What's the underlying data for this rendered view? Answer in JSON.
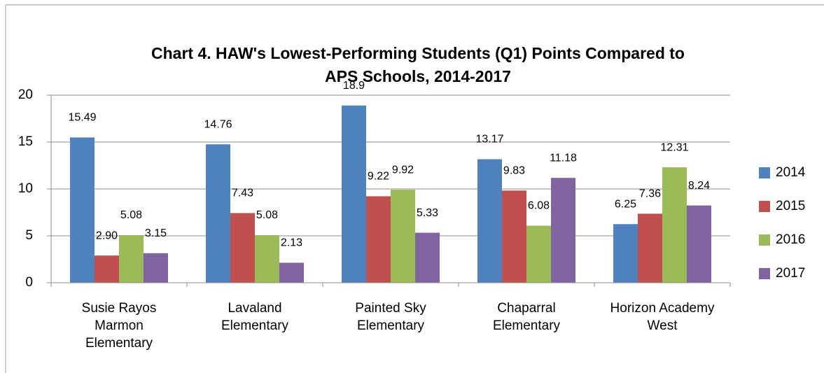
{
  "chart_data": {
    "type": "bar",
    "title": "Chart 4. HAW's Lowest-Performing Students (Q1) Points Compared to APS Schools, 2014-2017",
    "categories": [
      "Susie Rayos Marmon Elementary",
      "Lavaland Elementary",
      "Painted Sky Elementary",
      "Chaparral Elementary",
      "Horizon Academy West"
    ],
    "series": [
      {
        "name": "2014",
        "color": "#4f81bd",
        "values": [
          15.49,
          14.76,
          18.9,
          13.17,
          6.25
        ],
        "value_labels": [
          "15.49",
          "14.76",
          "18.9",
          "13.17",
          "6.25"
        ]
      },
      {
        "name": "2015",
        "color": "#c0504d",
        "values": [
          2.9,
          7.43,
          9.22,
          9.83,
          7.36
        ],
        "value_labels": [
          "2.90",
          "7.43",
          "9.22",
          "9.83",
          "7.36"
        ]
      },
      {
        "name": "2016",
        "color": "#9bbb59",
        "values": [
          5.08,
          5.08,
          9.92,
          6.08,
          12.31
        ],
        "value_labels": [
          "5.08",
          "5.08",
          "9.92",
          "6.08",
          "12.31"
        ]
      },
      {
        "name": "2017",
        "color": "#8064a2",
        "values": [
          3.15,
          2.13,
          5.33,
          11.18,
          8.24
        ],
        "value_labels": [
          "3.15",
          "2.13",
          "5.33",
          "11.18",
          "8.24"
        ]
      }
    ],
    "ylim": [
      0,
      20
    ],
    "yticks": [
      0,
      5,
      10,
      15,
      20
    ],
    "grid": true,
    "legend": "right"
  }
}
